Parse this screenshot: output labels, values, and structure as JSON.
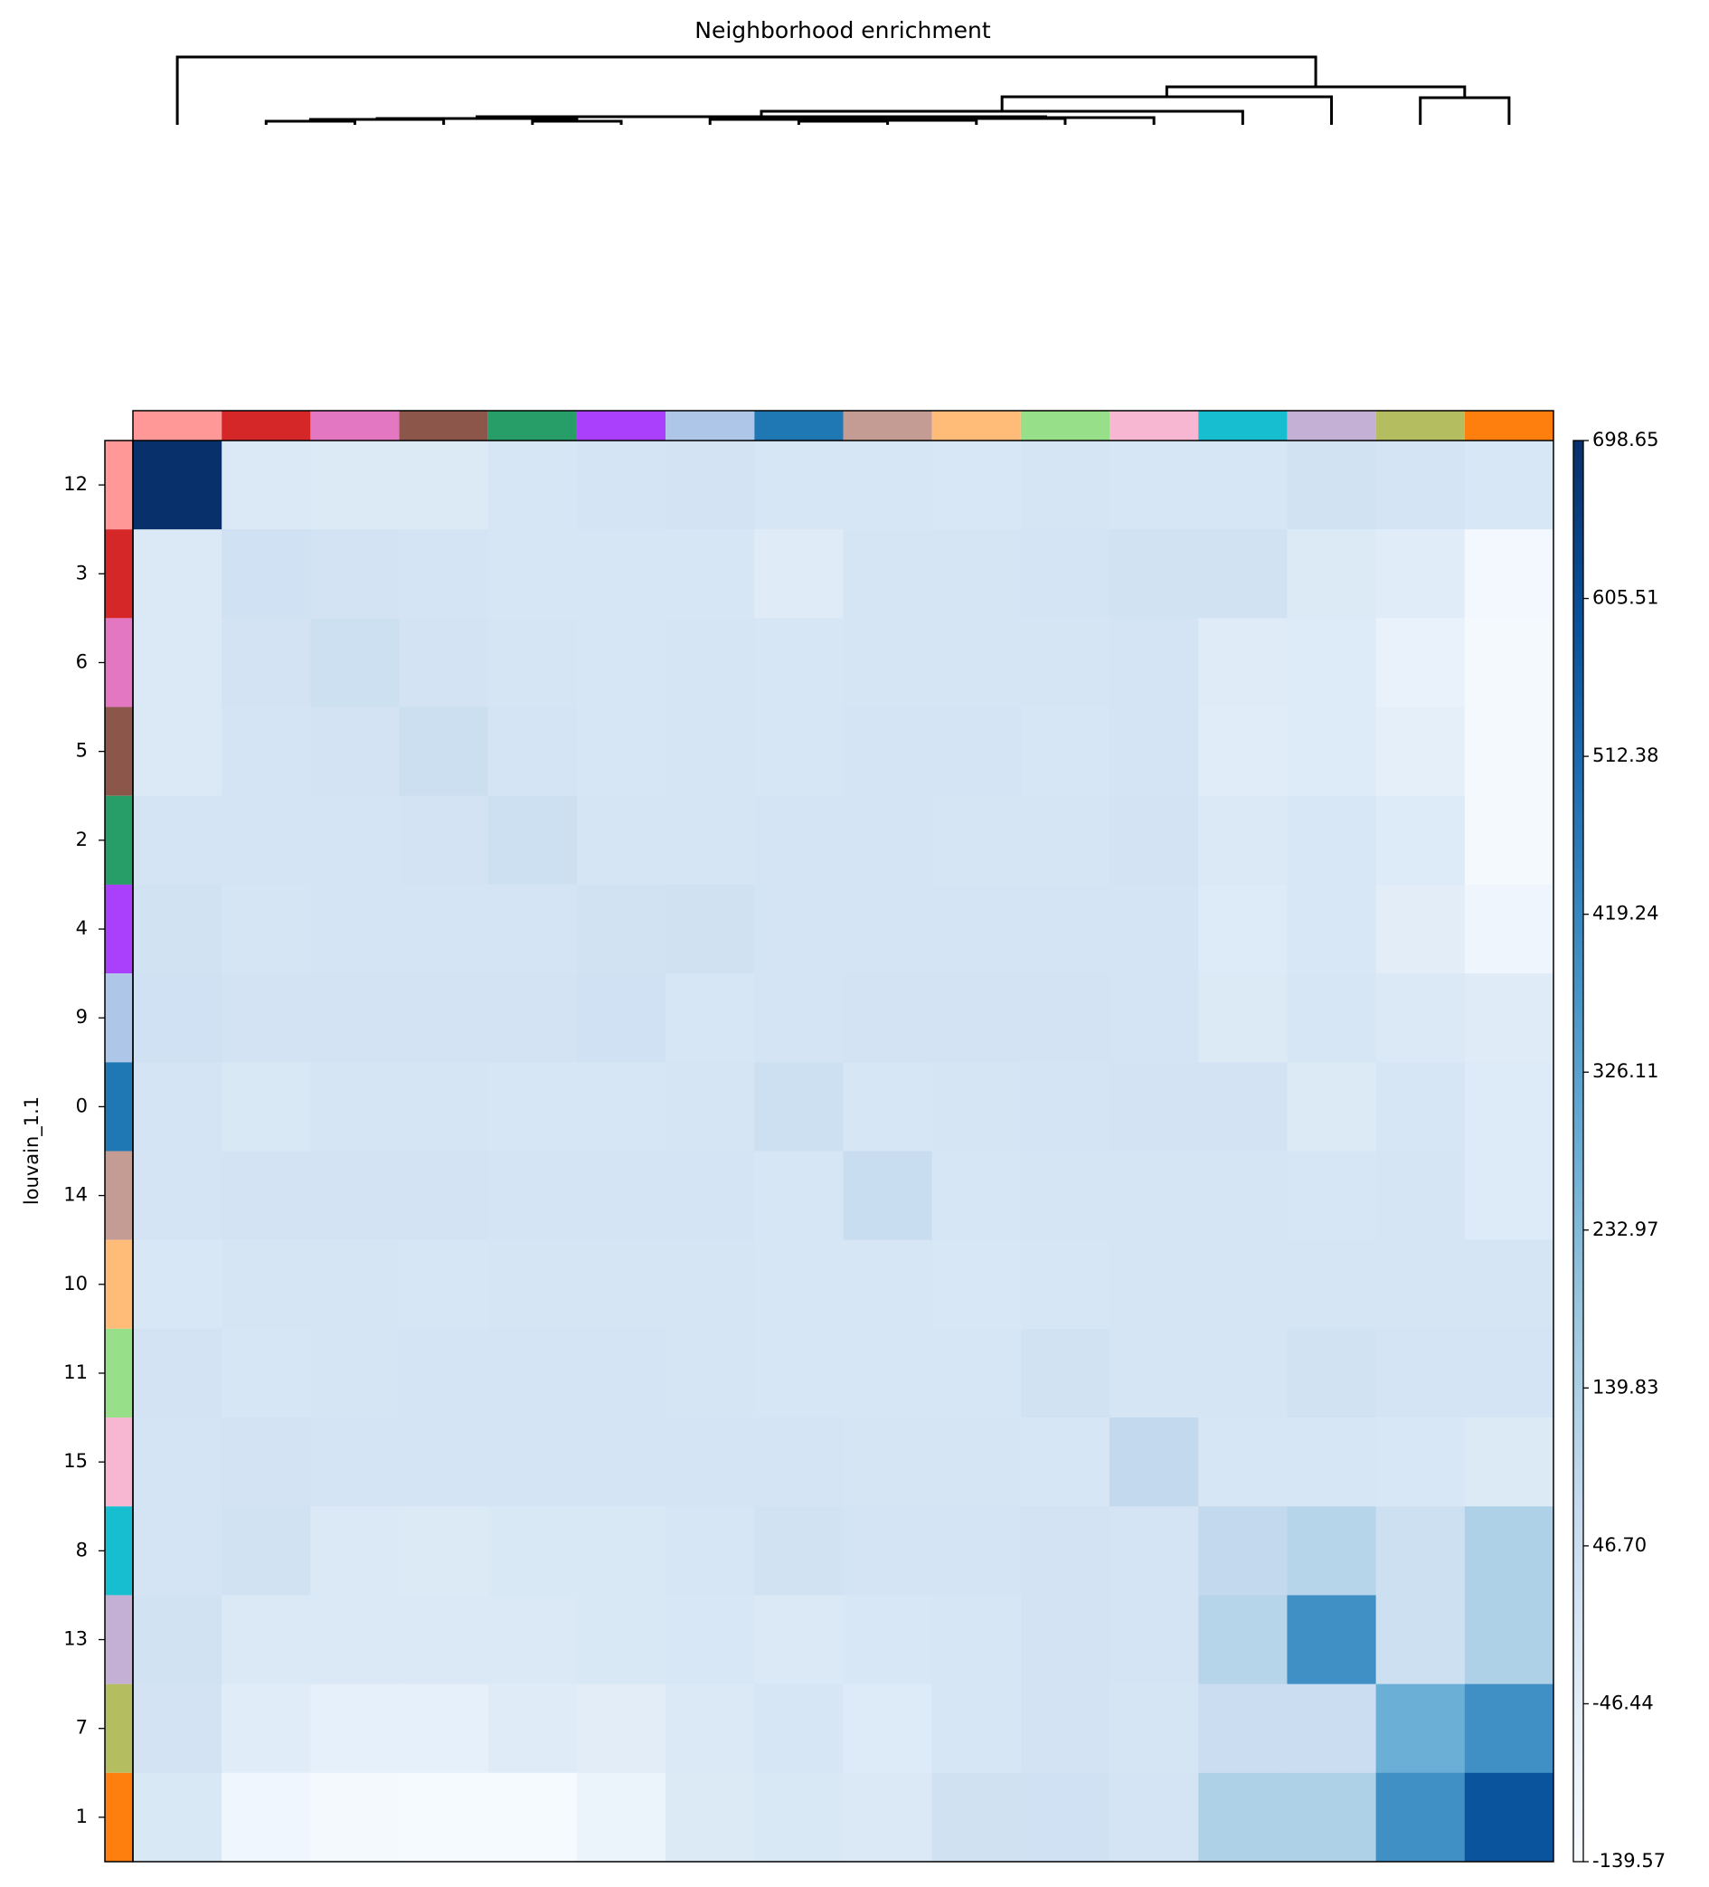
{
  "chart_data": {
    "type": "heatmap",
    "title": "Neighborhood enrichment",
    "ylabel": "louvain_1.1",
    "categories": [
      "12",
      "3",
      "6",
      "5",
      "2",
      "4",
      "9",
      "0",
      "14",
      "10",
      "11",
      "15",
      "8",
      "13",
      "7",
      "1"
    ],
    "category_colors": [
      "#ff9896",
      "#d62728",
      "#e377c2",
      "#8c564b",
      "#279e68",
      "#aa40fc",
      "#aec7e8",
      "#1f77b4",
      "#c49c94",
      "#ffbb78",
      "#98df8a",
      "#f7b6d2",
      "#17becf",
      "#c5b0d5",
      "#b5bd61",
      "#ff7f0e"
    ],
    "values": [
      [
        698.65,
        -20,
        -25,
        -25,
        0,
        10,
        15,
        0,
        0,
        -10,
        5,
        0,
        -5,
        20,
        10,
        -10
      ],
      [
        -20,
        30,
        15,
        10,
        0,
        -5,
        -5,
        -40,
        5,
        5,
        10,
        20,
        20,
        -25,
        -45,
        -120
      ],
      [
        -20,
        15,
        40,
        15,
        5,
        0,
        5,
        0,
        5,
        5,
        5,
        10,
        -40,
        -30,
        -80,
        -125
      ],
      [
        -20,
        10,
        15,
        45,
        10,
        0,
        5,
        0,
        10,
        10,
        0,
        10,
        -45,
        -30,
        -60,
        -128
      ],
      [
        10,
        10,
        10,
        15,
        40,
        5,
        5,
        10,
        10,
        5,
        5,
        15,
        -20,
        -10,
        -30,
        -125
      ],
      [
        20,
        5,
        10,
        10,
        10,
        20,
        25,
        10,
        10,
        10,
        10,
        10,
        -30,
        -10,
        -50,
        -100
      ],
      [
        30,
        15,
        15,
        15,
        15,
        30,
        0,
        10,
        15,
        15,
        15,
        10,
        -25,
        -5,
        -20,
        -40
      ],
      [
        10,
        -15,
        5,
        5,
        0,
        0,
        5,
        40,
        0,
        5,
        10,
        15,
        15,
        -25,
        -5,
        -30
      ],
      [
        10,
        15,
        15,
        15,
        10,
        10,
        10,
        0,
        55,
        0,
        5,
        5,
        5,
        0,
        5,
        -30
      ],
      [
        -10,
        5,
        5,
        0,
        5,
        5,
        5,
        0,
        -5,
        -10,
        0,
        5,
        5,
        5,
        5,
        5
      ],
      [
        15,
        0,
        5,
        10,
        10,
        10,
        5,
        0,
        -5,
        0,
        20,
        5,
        5,
        20,
        10,
        10
      ],
      [
        10,
        15,
        10,
        10,
        10,
        10,
        10,
        10,
        5,
        5,
        -5,
        80,
        0,
        -5,
        -10,
        -25
      ],
      [
        10,
        20,
        -20,
        -25,
        -15,
        -15,
        -5,
        20,
        10,
        10,
        15,
        10,
        80,
        110,
        40,
        130
      ],
      [
        20,
        -20,
        -20,
        -20,
        -20,
        -15,
        -10,
        -20,
        -10,
        0,
        15,
        10,
        110,
        390,
        40,
        130
      ],
      [
        15,
        -45,
        -70,
        -70,
        -40,
        -50,
        -20,
        0,
        -30,
        0,
        15,
        5,
        50,
        50,
        280,
        390
      ],
      [
        -15,
        -110,
        -125,
        -130,
        -130,
        -90,
        -25,
        -15,
        -20,
        25,
        30,
        10,
        130,
        130,
        390,
        585
      ]
    ],
    "colormap": "Blues",
    "clim": [
      -139.57,
      698.65
    ],
    "cticks": [
      -139.57,
      -46.44,
      {
        "value": 46.7,
        "label": "46.70"
      },
      139.83,
      232.97,
      326.11,
      419.24,
      512.38,
      605.51,
      698.65
    ]
  }
}
